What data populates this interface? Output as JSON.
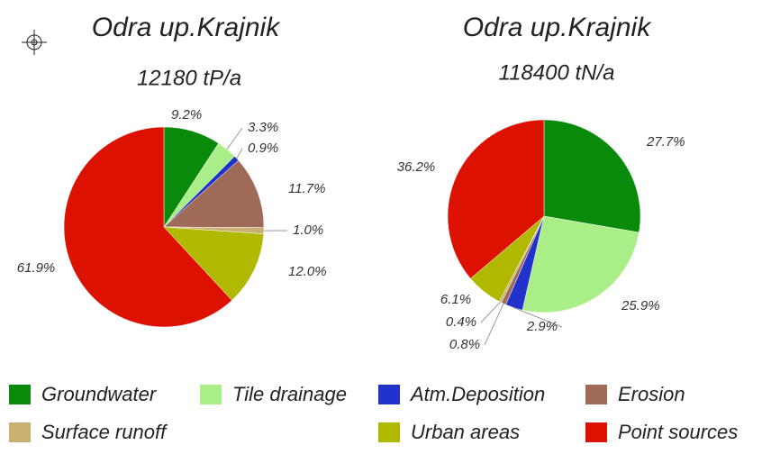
{
  "legend": [
    {
      "name": "Groundwater",
      "color": "#0a8a0a"
    },
    {
      "name": "Tile drainage",
      "color": "#aaee88"
    },
    {
      "name": "Atm.Deposition",
      "color": "#2233cc"
    },
    {
      "name": "Erosion",
      "color": "#a06a58"
    },
    {
      "name": "Surface runoff",
      "color": "#c8b070"
    },
    {
      "name": "Urban areas",
      "color": "#b0b800"
    },
    {
      "name": "Point sources",
      "color": "#dd1100"
    }
  ],
  "chart_data": [
    {
      "type": "pie",
      "title": "Odra up.Krajnik",
      "subtitle": "12180 tP/a",
      "values": [
        9.2,
        3.3,
        0.9,
        11.7,
        1.0,
        12.0,
        61.9
      ],
      "value_labels": [
        "9.2%",
        "3.3%",
        "0.9%",
        "11.7%",
        "1.0%",
        "12.0%",
        "61.9%"
      ]
    },
    {
      "type": "pie",
      "title": "Odra up.Krajnik",
      "subtitle": "118400 tN/a",
      "values": [
        27.7,
        25.9,
        2.9,
        0.8,
        0.4,
        6.1,
        36.2
      ],
      "value_labels": [
        "27.7%",
        "25.9%",
        "2.9%",
        "0.8%",
        "0.4%",
        "6.1%",
        "36.2%"
      ]
    }
  ]
}
